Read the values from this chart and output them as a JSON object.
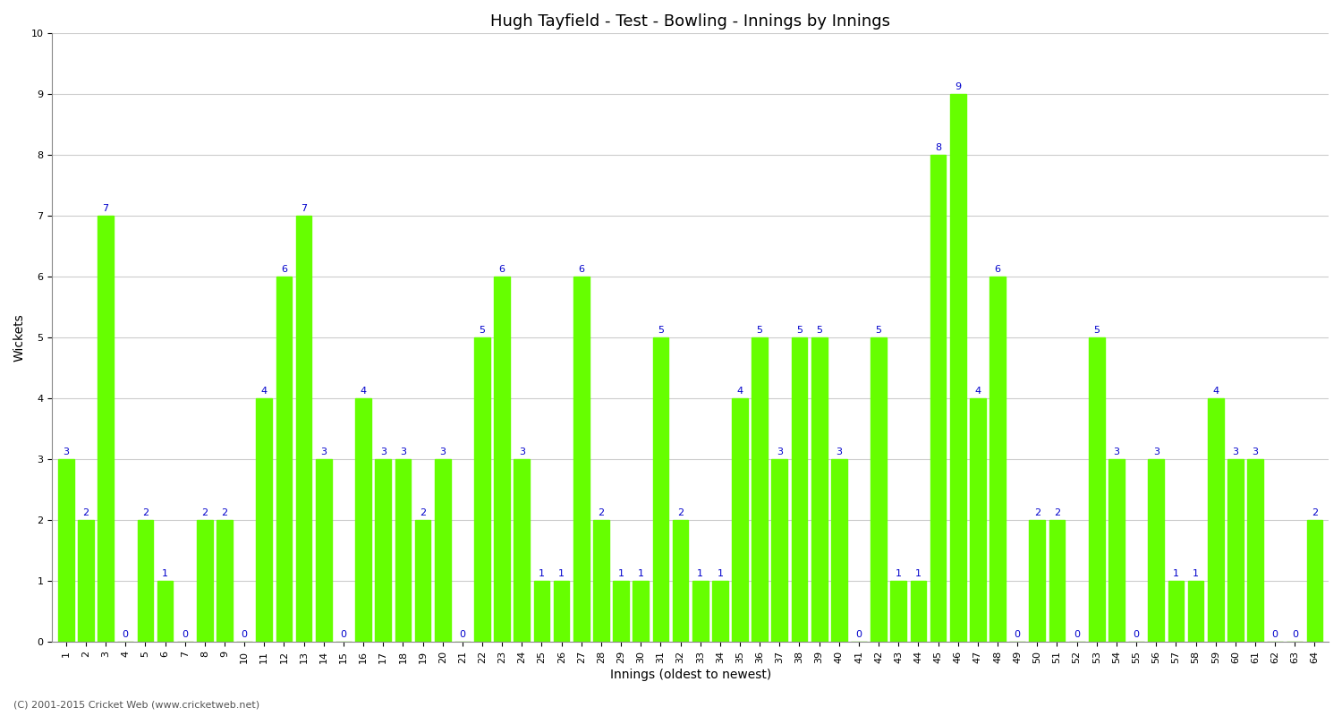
{
  "title": "Hugh Tayfield - Test - Bowling - Innings by Innings",
  "xlabel": "Innings (oldest to newest)",
  "ylabel": "Wickets",
  "background_color": "#ffffff",
  "bar_color": "#66ff00",
  "label_color": "#0000cc",
  "ylim": [
    0,
    10
  ],
  "yticks": [
    0,
    1,
    2,
    3,
    4,
    5,
    6,
    7,
    8,
    9,
    10
  ],
  "values": [
    3,
    2,
    7,
    0,
    2,
    1,
    0,
    2,
    2,
    0,
    4,
    6,
    7,
    3,
    0,
    4,
    3,
    3,
    2,
    3,
    0,
    5,
    6,
    3,
    1,
    1,
    6,
    2,
    1,
    1,
    5,
    2,
    1,
    1,
    4,
    5,
    3,
    5,
    5,
    3,
    0,
    5,
    1,
    1,
    8,
    9,
    4,
    6,
    0,
    2,
    2,
    0,
    5,
    3,
    0,
    3,
    1,
    1,
    4,
    3,
    3,
    0,
    0,
    2
  ],
  "x_labels": [
    "1",
    "2",
    "3",
    "4",
    "5",
    "6",
    "7",
    "8",
    "9",
    "10",
    "11",
    "12",
    "13",
    "14",
    "15",
    "16",
    "17",
    "18",
    "19",
    "20",
    "21",
    "22",
    "23",
    "24",
    "25",
    "26",
    "27",
    "28",
    "29",
    "30",
    "31",
    "32",
    "33",
    "34",
    "35",
    "36",
    "37",
    "38",
    "39",
    "40",
    "41",
    "42",
    "43",
    "44",
    "45",
    "46",
    "47",
    "48",
    "49",
    "50",
    "51",
    "52",
    "53",
    "54",
    "55",
    "56",
    "57",
    "58",
    "59",
    "60",
    "61",
    "62",
    "63",
    "64"
  ],
  "grid_color": "#cccccc",
  "title_fontsize": 13,
  "axis_fontsize": 10,
  "label_fontsize": 8,
  "tick_fontsize": 8,
  "footer_text": "(C) 2001-2015 Cricket Web (www.cricketweb.net)"
}
